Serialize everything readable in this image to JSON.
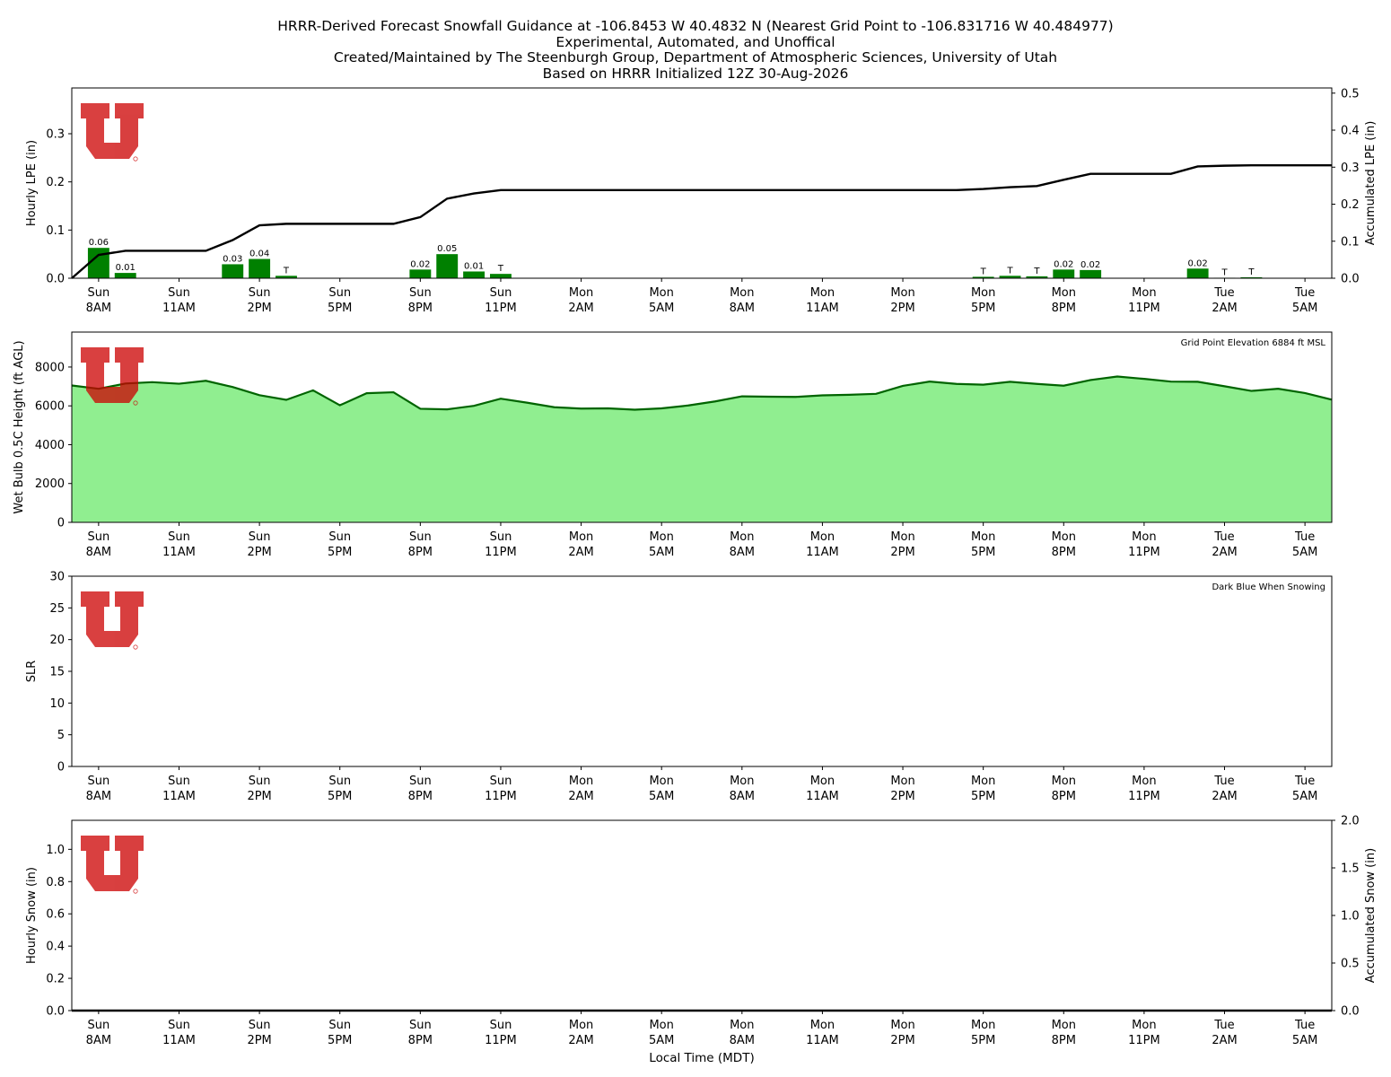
{
  "title_lines": [
    "HRRR-Derived Forecast Snowfall Guidance at -106.8453 W 40.4832 N (Nearest Grid Point to -106.831716 W 40.484977)",
    "Experimental, Automated, and Unoffical",
    "Created/Maintained by The Steenburgh Group, Department of Atmospheric Sciences, University of Utah",
    "Based on HRRR Initialized 12Z 30-Aug-2026"
  ],
  "time_axis": {
    "xlabel": "Local Time (MDT)",
    "ticks": [
      {
        "hour": 1,
        "day": "Sun",
        "time": "8AM"
      },
      {
        "hour": 4,
        "day": "Sun",
        "time": "11AM"
      },
      {
        "hour": 7,
        "day": "Sun",
        "time": "2PM"
      },
      {
        "hour": 10,
        "day": "Sun",
        "time": "5PM"
      },
      {
        "hour": 13,
        "day": "Sun",
        "time": "8PM"
      },
      {
        "hour": 16,
        "day": "Sun",
        "time": "11PM"
      },
      {
        "hour": 19,
        "day": "Mon",
        "time": "2AM"
      },
      {
        "hour": 22,
        "day": "Mon",
        "time": "5AM"
      },
      {
        "hour": 25,
        "day": "Mon",
        "time": "8AM"
      },
      {
        "hour": 28,
        "day": "Mon",
        "time": "11AM"
      },
      {
        "hour": 31,
        "day": "Mon",
        "time": "2PM"
      },
      {
        "hour": 34,
        "day": "Mon",
        "time": "5PM"
      },
      {
        "hour": 37,
        "day": "Mon",
        "time": "8PM"
      },
      {
        "hour": 40,
        "day": "Mon",
        "time": "11PM"
      },
      {
        "hour": 43,
        "day": "Tue",
        "time": "2AM"
      },
      {
        "hour": 46,
        "day": "Tue",
        "time": "5AM"
      }
    ],
    "xlim": [
      0,
      47
    ]
  },
  "logo": {
    "color": "#cc0000"
  },
  "chart_data": [
    {
      "id": "lpe",
      "type": "bar",
      "ylabel": "Hourly LPE (in)",
      "ylabel_right": "Accumulated LPE (in)",
      "ylim": [
        0,
        0.395
      ],
      "yticks": [
        0.0,
        0.1,
        0.2,
        0.3
      ],
      "ylim_right": [
        0,
        0.514
      ],
      "yticks_right": [
        0.0,
        0.1,
        0.2,
        0.3,
        0.4,
        0.5
      ],
      "bar_color": "#008000",
      "bars": [
        {
          "hour": 1,
          "value": 0.063,
          "label": "0.06"
        },
        {
          "hour": 2,
          "value": 0.011,
          "label": "0.01"
        },
        {
          "hour": 6,
          "value": 0.029,
          "label": "0.03"
        },
        {
          "hour": 7,
          "value": 0.04,
          "label": "0.04"
        },
        {
          "hour": 8,
          "value": 0.005,
          "label": "T"
        },
        {
          "hour": 13,
          "value": 0.018,
          "label": "0.02"
        },
        {
          "hour": 14,
          "value": 0.05,
          "label": "0.05"
        },
        {
          "hour": 15,
          "value": 0.014,
          "label": "0.01"
        },
        {
          "hour": 16,
          "value": 0.009,
          "label": "T"
        },
        {
          "hour": 34,
          "value": 0.003,
          "label": "T"
        },
        {
          "hour": 35,
          "value": 0.005,
          "label": "T"
        },
        {
          "hour": 36,
          "value": 0.004,
          "label": "T"
        },
        {
          "hour": 37,
          "value": 0.018,
          "label": "0.02"
        },
        {
          "hour": 38,
          "value": 0.017,
          "label": "0.02"
        },
        {
          "hour": 42,
          "value": 0.02,
          "label": "0.02"
        },
        {
          "hour": 43,
          "value": 0.001,
          "label": "T"
        },
        {
          "hour": 44,
          "value": 0.002,
          "label": "T"
        }
      ],
      "accum_line": {
        "color": "#000000",
        "x": [
          0,
          1,
          2,
          3,
          4,
          5,
          6,
          7,
          8,
          9,
          10,
          11,
          12,
          13,
          14,
          15,
          16,
          17,
          18,
          19,
          20,
          21,
          22,
          23,
          24,
          25,
          26,
          27,
          28,
          29,
          30,
          31,
          32,
          33,
          34,
          35,
          36,
          37,
          38,
          39,
          40,
          41,
          42,
          43,
          44,
          45,
          46,
          47
        ],
        "values": [
          0.0,
          0.063,
          0.074,
          0.074,
          0.074,
          0.074,
          0.103,
          0.143,
          0.147,
          0.147,
          0.147,
          0.147,
          0.147,
          0.165,
          0.215,
          0.229,
          0.238,
          0.238,
          0.238,
          0.238,
          0.238,
          0.238,
          0.238,
          0.238,
          0.238,
          0.238,
          0.238,
          0.238,
          0.238,
          0.238,
          0.238,
          0.238,
          0.238,
          0.238,
          0.241,
          0.246,
          0.249,
          0.266,
          0.282,
          0.282,
          0.282,
          0.282,
          0.302,
          0.304,
          0.305,
          0.305,
          0.305,
          0.305
        ]
      }
    },
    {
      "id": "wetbulb",
      "type": "area",
      "ylabel": "Wet Bulb 0.5C Height (ft AGL)",
      "ylim": [
        0,
        9800
      ],
      "yticks": [
        0,
        2000,
        4000,
        6000,
        8000
      ],
      "annotation": "Grid Point Elevation 6884 ft MSL",
      "fill_color": "#90ee90",
      "line_color": "#006400",
      "x": [
        0,
        1,
        2,
        3,
        4,
        5,
        6,
        7,
        8,
        9,
        10,
        11,
        12,
        13,
        14,
        15,
        16,
        17,
        18,
        19,
        20,
        21,
        22,
        23,
        24,
        25,
        26,
        27,
        28,
        29,
        30,
        31,
        32,
        33,
        34,
        35,
        36,
        37,
        38,
        39,
        40,
        41,
        42,
        43,
        44,
        45,
        46,
        47
      ],
      "values": [
        7050,
        6880,
        7150,
        7220,
        7140,
        7290,
        6970,
        6550,
        6310,
        6800,
        6030,
        6650,
        6700,
        5850,
        5820,
        6000,
        6370,
        6160,
        5930,
        5860,
        5870,
        5800,
        5870,
        6020,
        6230,
        6490,
        6470,
        6460,
        6540,
        6570,
        6620,
        7030,
        7250,
        7130,
        7090,
        7240,
        7130,
        7040,
        7330,
        7510,
        7390,
        7250,
        7240,
        7010,
        6770,
        6880,
        6660,
        6320
      ]
    },
    {
      "id": "slr",
      "type": "line",
      "ylabel": "SLR",
      "ylim": [
        0,
        30
      ],
      "yticks": [
        0,
        5,
        10,
        15,
        20,
        25,
        30
      ],
      "annotation": "Dark Blue When Snowing",
      "series": []
    },
    {
      "id": "snow",
      "type": "bar",
      "ylabel": "Hourly Snow (in)",
      "ylabel_right": "Accumulated Snow (in)",
      "ylim": [
        0,
        1.18
      ],
      "yticks": [
        0.0,
        0.2,
        0.4,
        0.6,
        0.8,
        1.0
      ],
      "ylim_right": [
        0,
        2.0
      ],
      "yticks_right": [
        0.0,
        0.5,
        1.0,
        1.5,
        2.0
      ],
      "bars": [],
      "accum_line": {
        "color": "#000000",
        "x": [
          0,
          47
        ],
        "values": [
          0.0,
          0.0
        ]
      }
    }
  ]
}
